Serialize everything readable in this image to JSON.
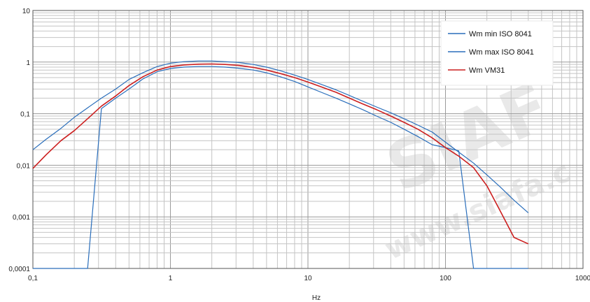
{
  "chart_data": {
    "type": "line",
    "title": "",
    "xlabel": "Hz",
    "ylabel": "",
    "xscale": "log",
    "yscale": "log",
    "xlim": [
      0.1,
      1000
    ],
    "ylim": [
      0.0001,
      10
    ],
    "x_tick_labels": [
      "0,1",
      "1",
      "10",
      "100",
      "1000"
    ],
    "y_tick_labels": [
      "0,0001",
      "0,001",
      "0,01",
      "0,1",
      "1",
      "10"
    ],
    "grid": true,
    "legend_position": "top-right",
    "series": [
      {
        "name": "Wm min ISO 8041",
        "color": "#2a6ebb",
        "x": [
          0.1,
          0.25,
          0.315,
          0.4,
          0.5,
          0.63,
          0.8,
          1,
          1.25,
          1.6,
          2,
          2.5,
          3.15,
          4,
          5,
          6.3,
          8,
          10,
          12.5,
          16,
          20,
          25,
          31.5,
          40,
          50,
          63,
          80,
          100,
          125,
          160,
          200,
          250,
          315,
          400
        ],
        "y": [
          0.0001,
          0.0001,
          0.125,
          0.2,
          0.3,
          0.47,
          0.65,
          0.75,
          0.8,
          0.82,
          0.82,
          0.8,
          0.76,
          0.7,
          0.62,
          0.52,
          0.42,
          0.33,
          0.26,
          0.2,
          0.155,
          0.12,
          0.09,
          0.068,
          0.05,
          0.036,
          0.025,
          0.022,
          0.019,
          0.0001,
          0.0001,
          0.0001,
          0.0001,
          0.0001
        ]
      },
      {
        "name": "Wm max ISO 8041",
        "color": "#2a6ebb",
        "x": [
          0.1,
          0.125,
          0.16,
          0.2,
          0.25,
          0.315,
          0.4,
          0.5,
          0.63,
          0.8,
          1,
          1.25,
          1.6,
          2,
          2.5,
          3.15,
          4,
          5,
          6.3,
          8,
          10,
          12.5,
          16,
          20,
          25,
          31.5,
          40,
          50,
          63,
          80,
          100,
          125,
          160,
          200,
          250,
          315,
          400
        ],
        "y": [
          0.02,
          0.032,
          0.052,
          0.085,
          0.13,
          0.2,
          0.3,
          0.46,
          0.62,
          0.82,
          0.95,
          1.02,
          1.05,
          1.05,
          1.02,
          0.98,
          0.9,
          0.8,
          0.68,
          0.56,
          0.46,
          0.37,
          0.29,
          0.225,
          0.175,
          0.135,
          0.104,
          0.08,
          0.06,
          0.044,
          0.028,
          0.018,
          0.011,
          0.0065,
          0.0038,
          0.0021,
          0.0012
        ]
      },
      {
        "name": "Wm VM31",
        "color": "#cc1f1f",
        "x": [
          0.1,
          0.125,
          0.16,
          0.2,
          0.25,
          0.315,
          0.4,
          0.5,
          0.63,
          0.8,
          1,
          1.25,
          1.6,
          2,
          2.5,
          3.15,
          4,
          5,
          6.3,
          8,
          10,
          12.5,
          16,
          20,
          25,
          31.5,
          40,
          50,
          63,
          80,
          100,
          125,
          160,
          200,
          250,
          315,
          400
        ],
        "y": [
          0.0087,
          0.016,
          0.03,
          0.047,
          0.08,
          0.14,
          0.22,
          0.35,
          0.52,
          0.7,
          0.82,
          0.88,
          0.91,
          0.92,
          0.9,
          0.86,
          0.79,
          0.7,
          0.6,
          0.5,
          0.41,
          0.33,
          0.26,
          0.2,
          0.155,
          0.12,
          0.09,
          0.068,
          0.05,
          0.034,
          0.022,
          0.015,
          0.009,
          0.004,
          0.0013,
          0.0004,
          0.0003
        ]
      }
    ]
  }
}
